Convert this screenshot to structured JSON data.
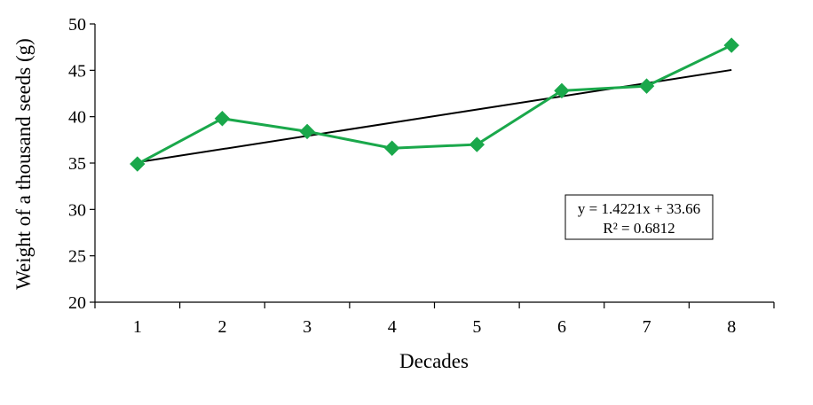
{
  "chart_data": {
    "type": "line",
    "xlabel": "Decades",
    "ylabel": "Weight of a thousand seeds (g)",
    "categories": [
      "1",
      "2",
      "3",
      "4",
      "5",
      "6",
      "7",
      "8"
    ],
    "x": [
      1,
      2,
      3,
      4,
      5,
      6,
      7,
      8
    ],
    "series": [
      {
        "values": [
          34.9,
          39.8,
          38.4,
          36.6,
          37.0,
          42.8,
          43.3,
          47.7
        ],
        "color": "#1aa84b",
        "marker": "diamond"
      }
    ],
    "trendline": {
      "slope": 1.4221,
      "intercept": 33.66,
      "color": "#000000",
      "equation": "y = 1.4221x + 33.66",
      "r_squared": "R² = 0.6812"
    },
    "ylim": [
      20,
      50
    ],
    "yticks": [
      20,
      25,
      30,
      35,
      40,
      45,
      50
    ],
    "grid": false,
    "legend": "none"
  }
}
